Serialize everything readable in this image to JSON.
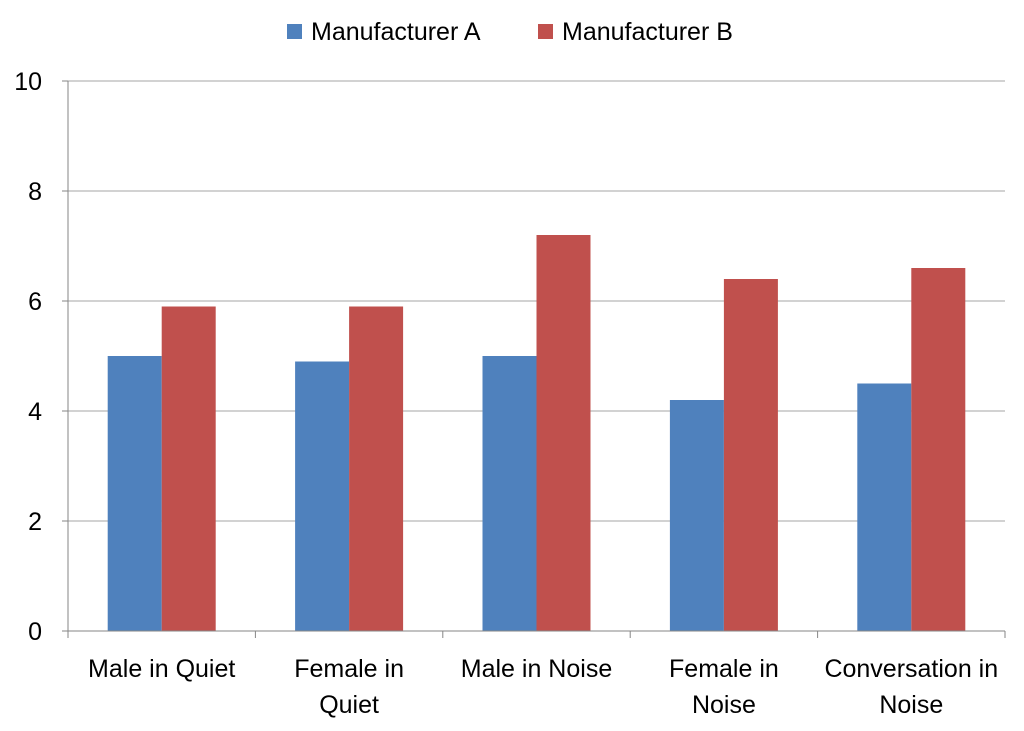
{
  "chart_data": {
    "type": "bar",
    "categories": [
      [
        "Male in Quiet"
      ],
      [
        "Female in",
        "Quiet"
      ],
      [
        "Male in Noise"
      ],
      [
        "Female in",
        "Noise"
      ],
      [
        "Conversation in",
        "Noise"
      ]
    ],
    "series": [
      {
        "name": "Manufacturer A",
        "color": "#4f81bd",
        "values": [
          5.0,
          4.9,
          5.0,
          4.2,
          4.5
        ]
      },
      {
        "name": "Manufacturer B",
        "color": "#c0504d",
        "values": [
          5.9,
          5.9,
          7.2,
          6.4,
          6.6
        ]
      }
    ],
    "ylim": [
      0,
      10
    ],
    "yticks": [
      "0",
      "2",
      "4",
      "6",
      "8",
      "10"
    ],
    "grid": true,
    "legend_position": "top-center",
    "title": "",
    "xlabel": "",
    "ylabel": ""
  }
}
